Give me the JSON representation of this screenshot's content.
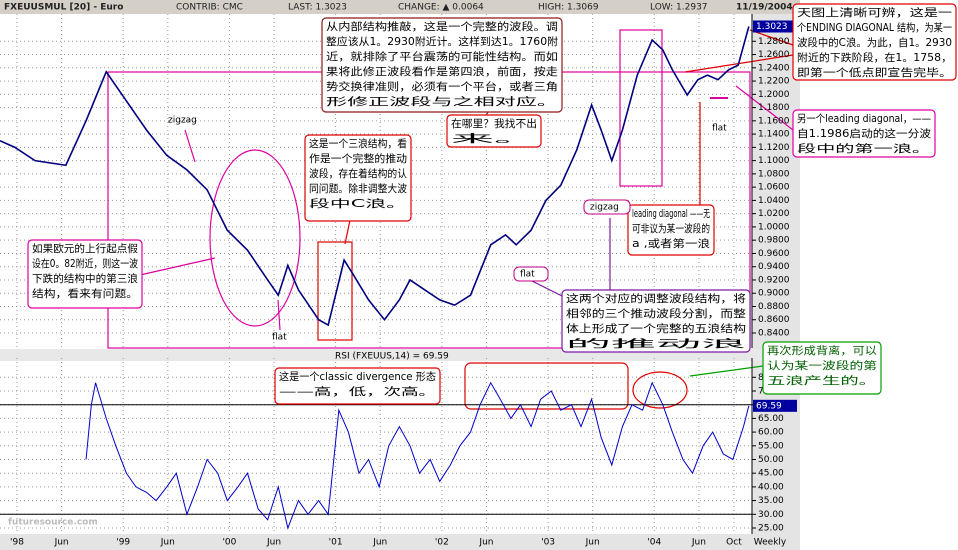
{
  "header": [
    "FXEUUSMUL [20] - Euro",
    "CONTRIB: CMC",
    "LAST: 1.3023",
    "CHANGE: ▲ 0.0064",
    "HIGH: 1.3069",
    "LOW: 1.2937",
    "11/19/2004"
  ],
  "chart_data": [
    {
      "type": "line",
      "color": "#000080",
      "grid": true,
      "last_label": "1.3023",
      "xlim": [
        1997.84,
        2004.92
      ],
      "ylim": [
        0.8204,
        1.3121
      ],
      "x": [
        1997.84,
        1997.98,
        1998.17,
        1998.46,
        1998.65,
        1998.84,
        1999.03,
        1999.22,
        1999.41,
        1999.6,
        1999.79,
        1999.98,
        2000.17,
        2000.36,
        2000.46,
        2000.55,
        2000.65,
        2000.84,
        2000.93,
        2001.08,
        2001.17,
        2001.31,
        2001.46,
        2001.6,
        2001.7,
        2001.84,
        2001.98,
        2002.12,
        2002.27,
        2002.46,
        2002.6,
        2002.7,
        2002.84,
        2002.98,
        2003.12,
        2003.27,
        2003.41,
        2003.5,
        2003.6,
        2003.7,
        2003.84,
        2003.98,
        2004.08,
        2004.17,
        2004.31,
        2004.41,
        2004.5,
        2004.6,
        2004.7,
        2004.79,
        2004.89
      ],
      "values": [
        1.13,
        1.12,
        1.1,
        1.093,
        1.16,
        1.234,
        1.19,
        1.146,
        1.108,
        1.086,
        1.056,
        0.995,
        0.965,
        0.92,
        0.897,
        0.942,
        0.905,
        0.86,
        0.852,
        0.95,
        0.927,
        0.89,
        0.86,
        0.89,
        0.92,
        0.905,
        0.89,
        0.882,
        0.897,
        0.973,
        0.988,
        0.973,
        0.995,
        1.04,
        1.063,
        1.116,
        1.184,
        1.146,
        1.1,
        1.146,
        1.229,
        1.282,
        1.267,
        1.237,
        1.199,
        1.222,
        1.229,
        1.222,
        1.237,
        1.244,
        1.3023
      ],
      "yticks": [
        {
          "value": 0.84,
          "label": "0.8400"
        },
        {
          "value": 0.86,
          "label": "0.8600"
        },
        {
          "value": 0.88,
          "label": "0.8800"
        },
        {
          "value": 0.9,
          "label": "0.9000"
        },
        {
          "value": 0.92,
          "label": "0.9200"
        },
        {
          "value": 0.94,
          "label": "0.9400"
        },
        {
          "value": 0.96,
          "label": "0.9600"
        },
        {
          "value": 0.98,
          "label": "0.9800"
        },
        {
          "value": 1.0,
          "label": "1.0000"
        },
        {
          "value": 1.02,
          "label": "1.0200"
        },
        {
          "value": 1.04,
          "label": "1.0400"
        },
        {
          "value": 1.06,
          "label": "1.0600"
        },
        {
          "value": 1.08,
          "label": "1.0800"
        },
        {
          "value": 1.1,
          "label": "1.1000"
        },
        {
          "value": 1.12,
          "label": "1.1200"
        },
        {
          "value": 1.14,
          "label": "1.1400"
        },
        {
          "value": 1.16,
          "label": "1.1600"
        },
        {
          "value": 1.18,
          "label": "1.1800"
        },
        {
          "value": 1.2,
          "label": "1.2000"
        },
        {
          "value": 1.22,
          "label": "1.2200"
        },
        {
          "value": 1.24,
          "label": "1.2400"
        },
        {
          "value": 1.26,
          "label": "1.2600"
        },
        {
          "value": 1.28,
          "label": "1.2800"
        }
      ]
    },
    {
      "type": "line",
      "title": "RSI (FXEUUS,14) = 69.59",
      "color": "#0000cc",
      "grid": true,
      "last_label": "69.59",
      "xlim": [
        1997.84,
        2004.92
      ],
      "ylim": [
        23.54,
        84.85
      ],
      "x": [
        1998.65,
        1998.7,
        1998.74,
        1998.84,
        1998.93,
        1999.03,
        1999.12,
        1999.22,
        1999.31,
        1999.41,
        1999.5,
        1999.6,
        1999.7,
        1999.79,
        1999.89,
        1999.98,
        2000.08,
        2000.17,
        2000.27,
        2000.36,
        2000.46,
        2000.55,
        2000.65,
        2000.74,
        2000.84,
        2000.93,
        2001.03,
        2001.12,
        2001.22,
        2001.31,
        2001.41,
        2001.5,
        2001.6,
        2001.7,
        2001.79,
        2001.89,
        2001.98,
        2002.08,
        2002.17,
        2002.27,
        2002.36,
        2002.46,
        2002.55,
        2002.65,
        2002.74,
        2002.84,
        2002.93,
        2003.03,
        2003.12,
        2003.22,
        2003.31,
        2003.41,
        2003.5,
        2003.6,
        2003.7,
        2003.79,
        2003.89,
        2003.98,
        2004.08,
        2004.17,
        2004.27,
        2004.36,
        2004.46,
        2004.55,
        2004.65,
        2004.74,
        2004.84,
        2004.89
      ],
      "values": [
        50,
        70,
        78,
        65,
        55,
        45,
        40,
        38,
        35,
        40,
        45,
        30,
        40,
        50,
        45,
        35,
        40,
        45,
        32,
        28,
        40,
        25,
        35,
        30,
        35,
        30,
        68,
        60,
        45,
        50,
        40,
        55,
        62,
        55,
        45,
        50,
        42,
        48,
        55,
        60,
        70,
        78,
        72,
        65,
        70,
        62,
        72,
        75,
        68,
        70,
        62,
        72,
        58,
        48,
        62,
        70,
        68,
        78,
        70,
        60,
        50,
        45,
        55,
        60,
        52,
        50,
        62,
        69.59
      ],
      "yticks": [
        {
          "value": 25,
          "label": "25.00"
        },
        {
          "value": 30,
          "label": "30.00"
        },
        {
          "value": 35,
          "label": "35.00"
        },
        {
          "value": 40,
          "label": "40.00"
        },
        {
          "value": 45,
          "label": "45.00"
        },
        {
          "value": 50,
          "label": "50.00"
        },
        {
          "value": 55,
          "label": "55.00"
        },
        {
          "value": 60,
          "label": "60.00"
        },
        {
          "value": 65,
          "label": "65.00"
        },
        {
          "value": 70,
          "label": "70.00"
        },
        {
          "value": 75,
          "label": "75.00"
        },
        {
          "value": 80,
          "label": "80"
        }
      ],
      "hlines": [
        70,
        30
      ],
      "xticks": [
        {
          "value": 1998.0,
          "label": "'98"
        },
        {
          "value": 1998.42,
          "label": "Jun"
        },
        {
          "value": 1999.0,
          "label": "'99"
        },
        {
          "value": 1999.42,
          "label": "Jun"
        },
        {
          "value": 2000.0,
          "label": "'00"
        },
        {
          "value": 2000.42,
          "label": "Jun"
        },
        {
          "value": 2001.0,
          "label": "'01"
        },
        {
          "value": 2001.42,
          "label": "Jun"
        },
        {
          "value": 2002.0,
          "label": "'02"
        },
        {
          "value": 2002.42,
          "label": "Jun"
        },
        {
          "value": 2003.0,
          "label": "'03"
        },
        {
          "value": 2003.42,
          "label": "Jun"
        },
        {
          "value": 2004.0,
          "label": "'04"
        },
        {
          "value": 2004.42,
          "label": "Jun"
        },
        {
          "value": 2004.75,
          "label": "Oct"
        }
      ],
      "frequency": "Weekly"
    }
  ],
  "annotations": [
    {
      "color": "#8b1a1a",
      "lines": [
        "从内部结构推敲，这是一个完整的波段。调",
        "整应该从1。2930附近计。这样到达1。1760附",
        "近，就排除了平台震荡的可能性结构。而如",
        "果将此修正波段看作是第四浪，前面，按走",
        "势交换律准则，必须有一个平台，或者三角",
        "形修正波段与之相对应。"
      ]
    },
    {
      "color": "#e00000",
      "lines": [
        "在哪里？我找不出",
        "来。"
      ]
    },
    {
      "color": "#e00000",
      "lines": [
        "这是一个三浪结构，看",
        "作是一个完整的推动",
        "波段，存在着结构的认",
        "同问题。除非调整大波",
        "段中C浪。"
      ]
    },
    {
      "color": "#e00000",
      "lines": [
        "天图上清晰可辨，这是一",
        "个ENDING DIAGONAL 结构，为某一",
        "波段中的C浪。为此，自1。2930",
        "附近的下跌阶段，在1。1758，",
        "即第一个低点即宣告完毕。"
      ]
    },
    {
      "color": "#e000a0",
      "lines": [
        "另一个leading diagonal，——",
        "自1.1986启动的这一分波",
        "段中的第一浪。"
      ]
    },
    {
      "color": "#e00000",
      "lines": [
        "leading diagonal ——无",
        "可非议为某一波段的",
        "a ,或者第一浪"
      ]
    },
    {
      "color": "#e000a0",
      "lines": [
        "如果欧元的上行起点假",
        "设在0。82附近，则这一波",
        "下跌的结构中的第三浪",
        "结构，看来有问题。"
      ]
    },
    {
      "color": "#7a1aa0",
      "lines": [
        "这两个对应的调整波段结构，将",
        "相邻的三个推动波段分割，而整",
        "体上形成了一个完整的五浪结构",
        "的推动浪"
      ]
    },
    {
      "color": "#e00000",
      "lines": [
        "这是一个classic divergence 形态",
        "——高，低，次高。"
      ]
    },
    {
      "color": "#00a000",
      "lines": [
        "再次形成背离，可以",
        "认为某一波段的第",
        "五浪产生的。"
      ]
    }
  ],
  "labels": [
    {
      "text": "zigzag",
      "color": "#c00080"
    },
    {
      "text": "flat",
      "color": "#c00080"
    },
    {
      "text": "flat",
      "color": "#c00080"
    },
    {
      "text": "zigzag",
      "color": "#c00080"
    },
    {
      "text": "flat",
      "color": "#c00080"
    }
  ],
  "watermark": "futuresource.com"
}
